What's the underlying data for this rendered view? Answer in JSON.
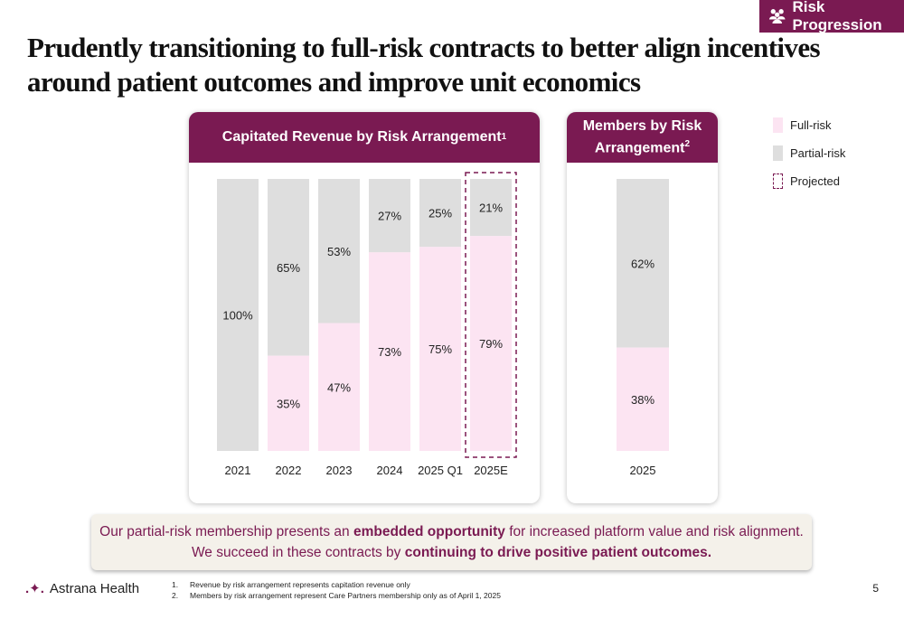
{
  "badge": {
    "label": "Risk Progression",
    "icon": "people-group-icon"
  },
  "title": "Prudently transitioning to full-risk contracts to better align incentives around patient outcomes and improve unit economics",
  "colors": {
    "brand": "#7a1a52",
    "full_risk": "#fce4f2",
    "partial_risk": "#dedede"
  },
  "chart_data": [
    {
      "type": "bar",
      "stacked": true,
      "title": "Capitated Revenue by Risk Arrangement",
      "title_sup": "1",
      "categories": [
        "2021",
        "2022",
        "2023",
        "2024",
        "2025 Q1",
        "2025E"
      ],
      "series": [
        {
          "name": "Full-risk",
          "values": [
            0,
            35,
            47,
            73,
            75,
            79
          ]
        },
        {
          "name": "Partial-risk",
          "values": [
            100,
            65,
            53,
            27,
            25,
            21
          ]
        }
      ],
      "projected": [
        "2025E"
      ],
      "ylim": [
        0,
        100
      ],
      "grid": false
    },
    {
      "type": "bar",
      "stacked": true,
      "title": "Members by Risk Arrangement",
      "title_sup": "2",
      "categories": [
        "2025"
      ],
      "series": [
        {
          "name": "Full-risk",
          "values": [
            38
          ]
        },
        {
          "name": "Partial-risk",
          "values": [
            62
          ]
        }
      ],
      "ylim": [
        0,
        100
      ],
      "grid": false
    }
  ],
  "legend": {
    "full": "Full-risk",
    "partial": "Partial-risk",
    "projected": "Projected"
  },
  "callout": {
    "line1_pre": "Our partial-risk membership presents an ",
    "line1_bold": "embedded opportunity",
    "line1_post": " for increased platform value and risk alignment.",
    "line2_pre": "We succeed in these contracts by ",
    "line2_bold": "continuing to drive positive patient outcomes."
  },
  "logo": {
    "text": "Astrana Health",
    "icon": "sparkle-logo-icon"
  },
  "footnotes": [
    {
      "num": "1.",
      "text": "Revenue by risk arrangement represents capitation revenue only"
    },
    {
      "num": "2.",
      "text": "Members by risk arrangement represent Care Partners membership only as of April 1, 2025"
    }
  ],
  "page_number": "5"
}
